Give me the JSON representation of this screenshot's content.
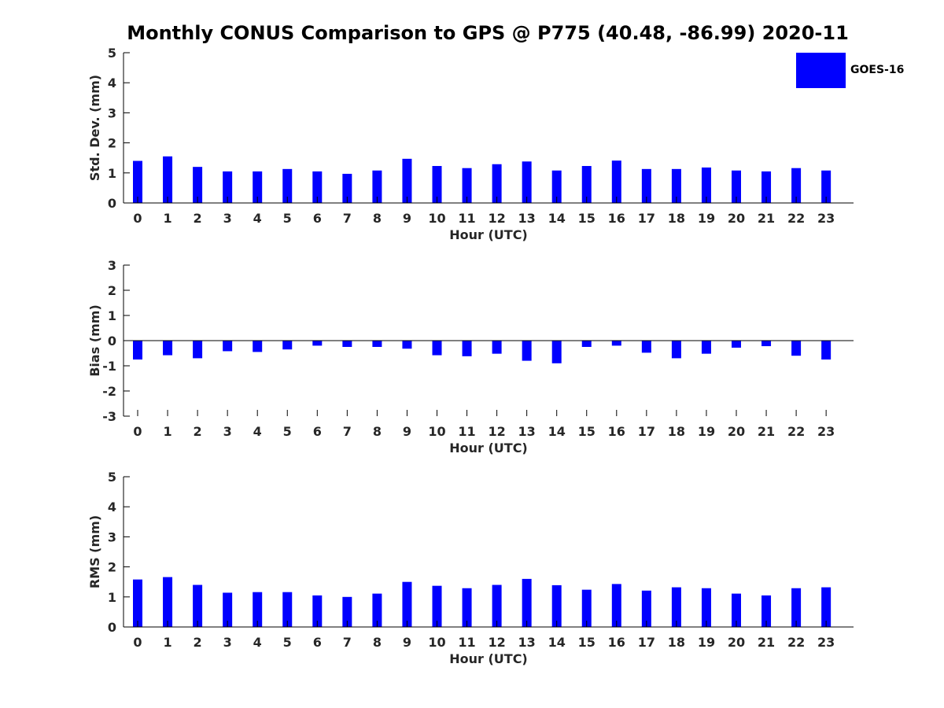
{
  "title": "Monthly CONUS Comparison to GPS @ P775 (40.48, -86.99) 2020-11",
  "legend": {
    "label": "GOES-16",
    "color": "#0000ff"
  },
  "chart_data": [
    {
      "type": "bar",
      "series": [
        {
          "name": "GOES-16",
          "color": "#0000ff",
          "values": [
            1.4,
            1.55,
            1.2,
            1.05,
            1.05,
            1.13,
            1.05,
            0.97,
            1.08,
            1.47,
            1.23,
            1.16,
            1.29,
            1.38,
            1.08,
            1.23,
            1.41,
            1.13,
            1.13,
            1.18,
            1.08,
            1.05,
            1.16,
            1.08
          ]
        }
      ],
      "categories": [
        "0",
        "1",
        "2",
        "3",
        "4",
        "5",
        "6",
        "7",
        "8",
        "9",
        "10",
        "11",
        "12",
        "13",
        "14",
        "15",
        "16",
        "17",
        "18",
        "19",
        "20",
        "21",
        "22",
        "23"
      ],
      "xlabel": "Hour (UTC)",
      "ylabel": "Std. Dev. (mm)",
      "ylim": [
        0,
        5
      ],
      "yticks": [
        "0",
        "1",
        "2",
        "3",
        "4",
        "5"
      ],
      "legend_position": "top-right",
      "grid": false
    },
    {
      "type": "bar",
      "series": [
        {
          "name": "GOES-16",
          "color": "#0000ff",
          "values": [
            -0.75,
            -0.58,
            -0.7,
            -0.42,
            -0.45,
            -0.35,
            -0.2,
            -0.25,
            -0.25,
            -0.32,
            -0.58,
            -0.62,
            -0.52,
            -0.8,
            -0.9,
            -0.25,
            -0.2,
            -0.48,
            -0.7,
            -0.52,
            -0.28,
            -0.22,
            -0.6,
            -0.75
          ]
        }
      ],
      "categories": [
        "0",
        "1",
        "2",
        "3",
        "4",
        "5",
        "6",
        "7",
        "8",
        "9",
        "10",
        "11",
        "12",
        "13",
        "14",
        "15",
        "16",
        "17",
        "18",
        "19",
        "20",
        "21",
        "22",
        "23"
      ],
      "xlabel": "Hour (UTC)",
      "ylabel": "Bias (mm)",
      "ylim": [
        -3,
        3
      ],
      "yticks": [
        "-3",
        "-2",
        "-1",
        "0",
        "1",
        "2",
        "3"
      ],
      "grid": false
    },
    {
      "type": "bar",
      "series": [
        {
          "name": "GOES-16",
          "color": "#0000ff",
          "values": [
            1.58,
            1.66,
            1.4,
            1.14,
            1.16,
            1.16,
            1.05,
            1.0,
            1.11,
            1.5,
            1.37,
            1.29,
            1.4,
            1.6,
            1.39,
            1.24,
            1.43,
            1.21,
            1.32,
            1.29,
            1.11,
            1.05,
            1.29,
            1.32
          ]
        }
      ],
      "categories": [
        "0",
        "1",
        "2",
        "3",
        "4",
        "5",
        "6",
        "7",
        "8",
        "9",
        "10",
        "11",
        "12",
        "13",
        "14",
        "15",
        "16",
        "17",
        "18",
        "19",
        "20",
        "21",
        "22",
        "23"
      ],
      "xlabel": "Hour (UTC)",
      "ylabel": "RMS (mm)",
      "ylim": [
        0,
        5
      ],
      "yticks": [
        "0",
        "1",
        "2",
        "3",
        "4",
        "5"
      ],
      "grid": false
    }
  ]
}
